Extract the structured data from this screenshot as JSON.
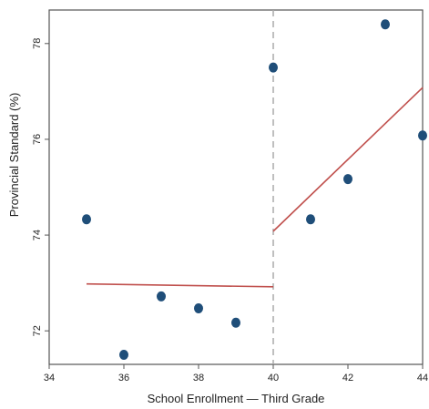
{
  "chart_data": {
    "type": "scatter",
    "title": "",
    "xlabel": "School Enrollment — Third Grade",
    "ylabel": "Provincial Standard (%)",
    "xlim": [
      34,
      44
    ],
    "ylim": [
      71.3,
      78.7
    ],
    "x_ticks": [
      34,
      36,
      38,
      40,
      42,
      44
    ],
    "y_ticks": [
      72,
      74,
      76,
      78
    ],
    "grid": false,
    "legend": "none",
    "cutoff": 40,
    "points": [
      {
        "x": 35,
        "y": 74.33
      },
      {
        "x": 36,
        "y": 71.5
      },
      {
        "x": 37,
        "y": 72.72
      },
      {
        "x": 38,
        "y": 72.47
      },
      {
        "x": 39,
        "y": 72.17
      },
      {
        "x": 40,
        "y": 77.5
      },
      {
        "x": 41,
        "y": 74.33
      },
      {
        "x": 42,
        "y": 75.17
      },
      {
        "x": 43,
        "y": 78.4
      },
      {
        "x": 44,
        "y": 76.08
      }
    ],
    "fit_lines": [
      {
        "x": [
          35,
          40
        ],
        "y": [
          72.98,
          72.92
        ]
      },
      {
        "x": [
          40,
          44
        ],
        "y": [
          74.08,
          77.08
        ]
      }
    ],
    "colors": {
      "points": "#1f4e79",
      "fit": "#c0504d",
      "cutoff": "#aaaaaa",
      "frame": "#555555"
    }
  }
}
